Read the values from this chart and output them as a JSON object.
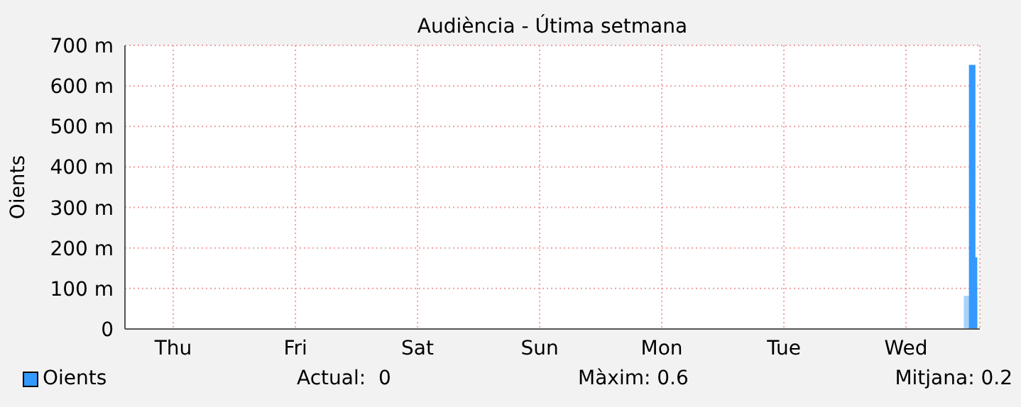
{
  "chart_data": {
    "type": "area",
    "title": "Audiència - Útima setmana",
    "ylabel": "Oients",
    "categories": [
      null,
      null,
      null,
      null,
      null,
      null,
      null,
      null,
      null,
      "Thu",
      null,
      null,
      null,
      null,
      null,
      null,
      null,
      null,
      null,
      null,
      null,
      null,
      null,
      null,
      null,
      null,
      null,
      null,
      null,
      null,
      null,
      null,
      null,
      "Fri",
      null,
      null,
      null,
      null,
      null,
      null,
      null,
      null,
      null,
      null,
      null,
      null,
      null,
      null,
      null,
      null,
      null,
      null,
      null,
      null,
      null,
      null,
      null,
      "Sat",
      null,
      null,
      null,
      null,
      null,
      null,
      null,
      null,
      null,
      null,
      null,
      null,
      null,
      null,
      null,
      null,
      null,
      null,
      null,
      null,
      null,
      null,
      null,
      "Sun",
      null,
      null,
      null,
      null,
      null,
      null,
      null,
      null,
      null,
      null,
      null,
      null,
      null,
      null,
      null,
      null,
      null,
      null,
      null,
      null,
      null,
      null,
      null,
      "Mon",
      null,
      null,
      null,
      null,
      null,
      null,
      null,
      null,
      null,
      null,
      null,
      null,
      null,
      null,
      null,
      null,
      null,
      null,
      null,
      null,
      null,
      null,
      null,
      "Tue",
      null,
      null,
      null,
      null,
      null,
      null,
      null,
      null,
      null,
      null,
      null,
      null,
      null,
      null,
      null,
      null,
      null,
      null,
      null,
      null,
      null,
      null,
      null,
      "Wed",
      null,
      null,
      null,
      null,
      null,
      null,
      null,
      null,
      null,
      null,
      null,
      null,
      null,
      null
    ],
    "ylim": [
      0,
      700
    ],
    "yticks": [
      0,
      {
        "value": 100,
        "label": "100 m"
      },
      {
        "value": 200,
        "label": "200 m"
      },
      {
        "value": 300,
        "label": "300 m"
      },
      {
        "value": 400,
        "label": "400 m"
      },
      {
        "value": 500,
        "label": "500 m"
      },
      {
        "value": 600,
        "label": "600 m"
      },
      {
        "value": 700,
        "label": "700 m"
      }
    ],
    "series": [
      {
        "color": "#a8d2fa",
        "values": [
          0,
          0,
          0,
          0,
          0,
          0,
          0,
          0,
          0,
          0,
          0,
          0,
          0,
          0,
          0,
          0,
          0,
          0,
          0,
          0,
          0,
          0,
          0,
          0,
          0,
          0,
          0,
          0,
          0,
          0,
          0,
          0,
          0,
          0,
          0,
          0,
          0,
          0,
          0,
          0,
          0,
          0,
          0,
          0,
          0,
          0,
          0,
          0,
          0,
          0,
          0,
          0,
          0,
          0,
          0,
          0,
          0,
          0,
          0,
          0,
          0,
          0,
          0,
          0,
          0,
          0,
          0,
          0,
          0,
          0,
          0,
          0,
          0,
          0,
          0,
          0,
          0,
          0,
          0,
          0,
          0,
          0,
          0,
          0,
          0,
          0,
          0,
          0,
          0,
          0,
          0,
          0,
          0,
          0,
          0,
          0,
          0,
          0,
          0,
          0,
          0,
          0,
          0,
          0,
          0,
          0,
          0,
          0,
          0,
          0,
          0,
          0,
          0,
          0,
          0,
          0,
          0,
          0,
          0,
          0,
          0,
          0,
          0,
          0,
          0,
          0,
          0,
          0,
          0,
          0,
          0,
          0,
          0,
          0,
          0,
          0,
          0,
          0,
          0,
          0,
          0,
          0,
          0,
          0,
          0,
          0,
          0,
          0,
          0,
          0,
          0,
          0,
          0,
          0,
          0,
          0,
          0,
          0,
          0,
          0,
          0,
          0,
          0,
          0,
          0,
          80,
          80,
          80
        ]
      },
      {
        "name": "Oients",
        "color": "#3399ff",
        "values": [
          0,
          0,
          0,
          0,
          0,
          0,
          0,
          0,
          0,
          0,
          0,
          0,
          0,
          0,
          0,
          0,
          0,
          0,
          0,
          0,
          0,
          0,
          0,
          0,
          0,
          0,
          0,
          0,
          0,
          0,
          0,
          0,
          0,
          0,
          0,
          0,
          0,
          0,
          0,
          0,
          0,
          0,
          0,
          0,
          0,
          0,
          0,
          0,
          0,
          0,
          0,
          0,
          0,
          0,
          0,
          0,
          0,
          0,
          0,
          0,
          0,
          0,
          0,
          0,
          0,
          0,
          0,
          0,
          0,
          0,
          0,
          0,
          0,
          0,
          0,
          0,
          0,
          0,
          0,
          0,
          0,
          0,
          0,
          0,
          0,
          0,
          0,
          0,
          0,
          0,
          0,
          0,
          0,
          0,
          0,
          0,
          0,
          0,
          0,
          0,
          0,
          0,
          0,
          0,
          0,
          0,
          0,
          0,
          0,
          0,
          0,
          0,
          0,
          0,
          0,
          0,
          0,
          0,
          0,
          0,
          0,
          0,
          0,
          0,
          0,
          0,
          0,
          0,
          0,
          0,
          0,
          0,
          0,
          0,
          0,
          0,
          0,
          0,
          0,
          0,
          0,
          0,
          0,
          0,
          0,
          0,
          0,
          0,
          0,
          0,
          0,
          0,
          0,
          0,
          0,
          0,
          0,
          0,
          0,
          0,
          0,
          0,
          0,
          0,
          0,
          0,
          650,
          175
        ]
      }
    ],
    "grid": true,
    "legend": "bottom left",
    "annotations": [
      "Actual:  0",
      "Màxim: 0.6",
      "Mitjana: 0.2"
    ]
  }
}
